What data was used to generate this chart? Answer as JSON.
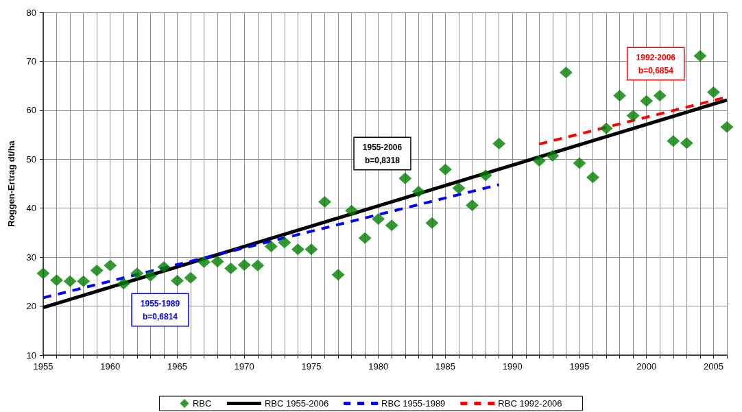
{
  "chart_data": {
    "type": "scatter",
    "ylabel": "Roggen-Ertrag dt/ha",
    "x": [
      1955,
      1956,
      1957,
      1958,
      1959,
      1960,
      1961,
      1962,
      1963,
      1964,
      1965,
      1966,
      1967,
      1968,
      1969,
      1970,
      1971,
      1972,
      1973,
      1974,
      1975,
      1976,
      1977,
      1978,
      1979,
      1980,
      1981,
      1982,
      1983,
      1984,
      1985,
      1986,
      1987,
      1988,
      1989,
      1990,
      1991,
      1992,
      1993,
      1994,
      1995,
      1996,
      1997,
      1998,
      1999,
      2000,
      2001,
      2002,
      2003,
      2004,
      2005,
      2006
    ],
    "series": [
      {
        "name": "RBC",
        "color": "#008000",
        "marker": "diamond",
        "values": [
          26.7,
          25.3,
          25.1,
          25.1,
          27.3,
          28.3,
          24.6,
          26.7,
          26.2,
          28.0,
          25.2,
          25.8,
          29.0,
          29.1,
          27.7,
          28.4,
          28.3,
          32.2,
          33.0,
          31.6,
          31.6,
          41.3,
          26.4,
          39.5,
          33.9,
          37.8,
          36.5,
          46.1,
          43.4,
          37.0,
          47.9,
          44.1,
          40.6,
          46.7,
          53.2,
          null,
          null,
          49.7,
          50.7,
          67.7,
          49.2,
          46.3,
          56.3,
          63.0,
          58.9,
          61.9,
          63.0,
          53.7,
          53.3,
          71.1,
          63.7,
          56.6
        ]
      },
      {
        "name": "RBC 1955-2006",
        "type": "line",
        "color": "#000000",
        "line_style": "solid",
        "x": [
          1955,
          2006
        ],
        "values": [
          19.7,
          62.1
        ]
      },
      {
        "name": "RBC 1955-1989",
        "type": "line",
        "color": "#0000ff",
        "line_style": "dashed",
        "x": [
          1955,
          1989
        ],
        "values": [
          21.7,
          44.8
        ]
      },
      {
        "name": "RBC 1992-2006",
        "type": "line",
        "color": "#ff0000",
        "line_style": "dashed",
        "x": [
          1992,
          2006
        ],
        "values": [
          53.1,
          62.7
        ]
      }
    ],
    "xlim": [
      1955,
      2006
    ],
    "xticks": [
      1955,
      {
        "value": 1956,
        "label": null
      },
      {
        "value": 1957,
        "label": null
      },
      {
        "value": 1958,
        "label": null
      },
      {
        "value": 1959,
        "label": null
      },
      1960,
      {
        "value": 1961,
        "label": null
      },
      {
        "value": 1962,
        "label": null
      },
      {
        "value": 1963,
        "label": null
      },
      {
        "value": 1964,
        "label": null
      },
      1965,
      {
        "value": 1966,
        "label": null
      },
      {
        "value": 1967,
        "label": null
      },
      {
        "value": 1968,
        "label": null
      },
      {
        "value": 1969,
        "label": null
      },
      1970,
      {
        "value": 1971,
        "label": null
      },
      {
        "value": 1972,
        "label": null
      },
      {
        "value": 1973,
        "label": null
      },
      {
        "value": 1974,
        "label": null
      },
      1975,
      {
        "value": 1976,
        "label": null
      },
      {
        "value": 1977,
        "label": null
      },
      {
        "value": 1978,
        "label": null
      },
      {
        "value": 1979,
        "label": null
      },
      1980,
      {
        "value": 1981,
        "label": null
      },
      {
        "value": 1982,
        "label": null
      },
      {
        "value": 1983,
        "label": null
      },
      {
        "value": 1984,
        "label": null
      },
      1985,
      {
        "value": 1986,
        "label": null
      },
      {
        "value": 1987,
        "label": null
      },
      {
        "value": 1988,
        "label": null
      },
      {
        "value": 1989,
        "label": null
      },
      1990,
      {
        "value": 1991,
        "label": null
      },
      {
        "value": 1992,
        "label": null
      },
      {
        "value": 1993,
        "label": null
      },
      {
        "value": 1994,
        "label": null
      },
      1995,
      {
        "value": 1996,
        "label": null
      },
      {
        "value": 1997,
        "label": null
      },
      {
        "value": 1998,
        "label": null
      },
      {
        "value": 1999,
        "label": null
      },
      2000,
      {
        "value": 2001,
        "label": null
      },
      {
        "value": 2002,
        "label": null
      },
      {
        "value": 2003,
        "label": null
      },
      {
        "value": 2004,
        "label": null
      },
      2005,
      {
        "value": 2006,
        "label": null
      }
    ],
    "ylim": [
      10,
      80
    ],
    "yticks": [
      10,
      20,
      30,
      40,
      50,
      60,
      70,
      80
    ],
    "grid": true,
    "legend": "bottom",
    "annotations": [
      "1955-2006\nb=0,8318",
      "1955-1989\nb=0,6814",
      "1992-2006\nb=0,6854"
    ]
  }
}
